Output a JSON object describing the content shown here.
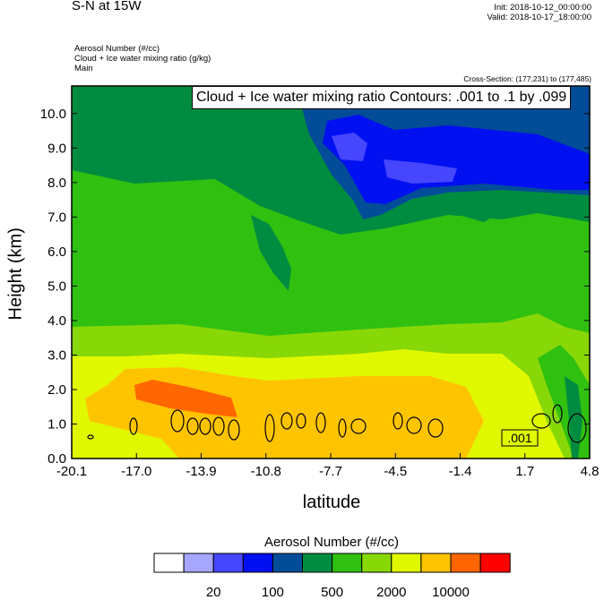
{
  "header": {
    "title": "S-N at 15W",
    "init": "Init: 2018-10-12_00:00:00",
    "valid": "Valid: 2018-10-17_18:00:00",
    "fields": [
      "Aerosol Number   (#/cc)",
      "Cloud + Ice water mixing ratio   (g/kg)",
      "Main"
    ],
    "cross_section": "Cross-Section: (177,231) to (177,485)"
  },
  "chart_data": {
    "type": "heatmap",
    "title": "S-N at 15W",
    "xlabel": "latitude",
    "ylabel": "Height (km)",
    "xlim": [
      -20.1,
      4.8
    ],
    "ylim": [
      0,
      10.8
    ],
    "x_ticks": [
      "-20.1",
      "-17.0",
      "-13.9",
      "-10.8",
      "-7.7",
      "-4.5",
      "-1.4",
      "1.7",
      "4.8"
    ],
    "y_ticks": [
      "0.0",
      "1.0",
      "2.0",
      "3.0",
      "4.0",
      "5.0",
      "6.0",
      "7.0",
      "8.0",
      "9.0",
      "10.0"
    ],
    "contour_legend": "Cloud + Ice water mixing ratio Contours: .001 to .1 by .099",
    "contour_label": ".001",
    "colorbar": {
      "title": "Aerosol Number  (#/cc)",
      "colors": [
        "#ffffff",
        "#a6a6ff",
        "#4646ff",
        "#0010f0",
        "#024c98",
        "#008c40",
        "#30c010",
        "#88d808",
        "#e0f800",
        "#ffc400",
        "#ff6600",
        "#ff0000"
      ],
      "labels": [
        "20",
        "100",
        "500",
        "2000",
        "10000"
      ]
    }
  }
}
